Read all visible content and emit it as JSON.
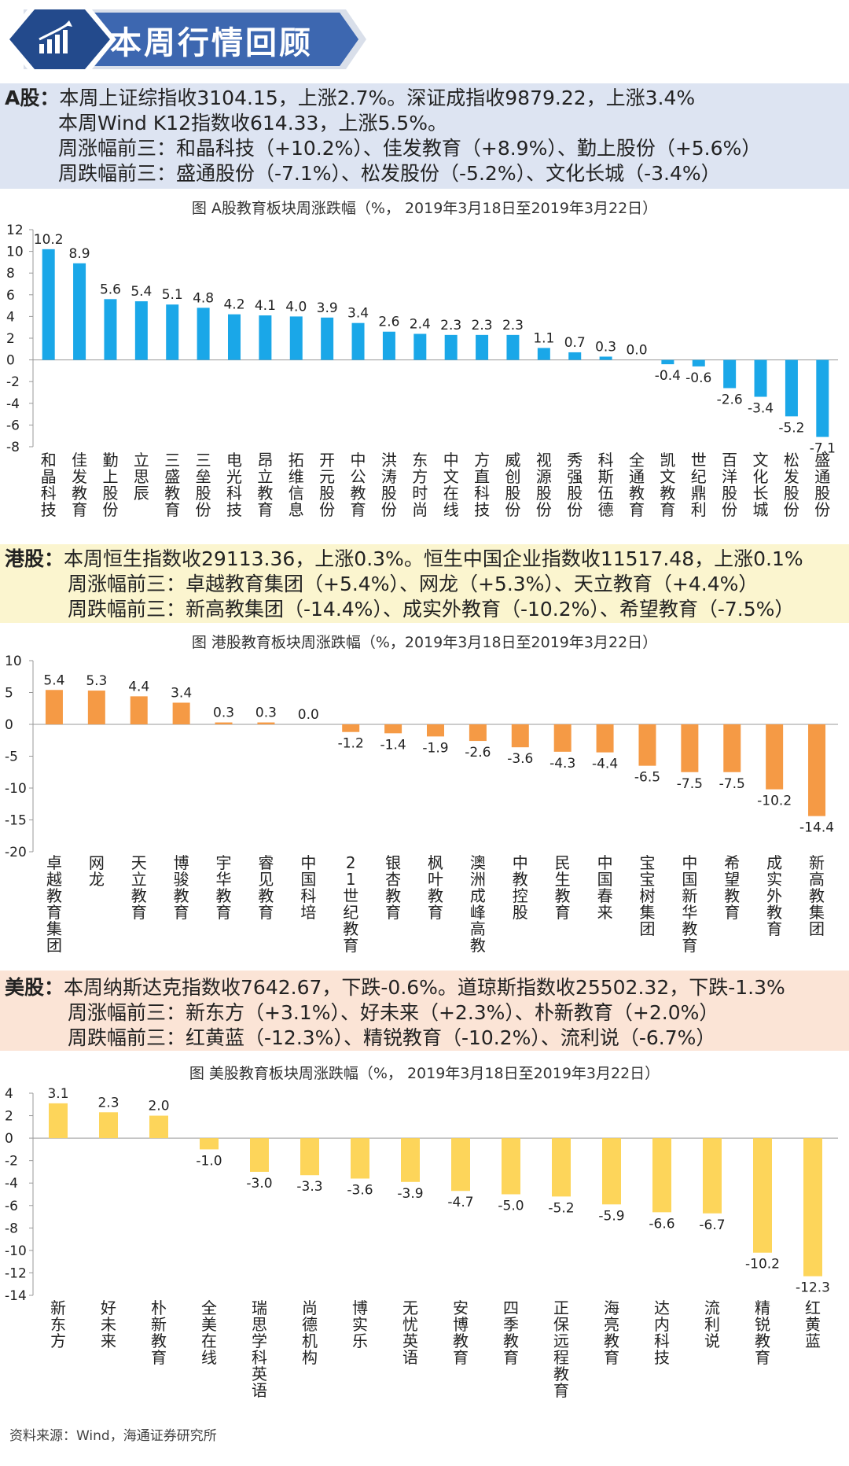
{
  "header": {
    "title": "本周行情回顾",
    "icon": "bar-chart-icon"
  },
  "a_share": {
    "tag": "A股：",
    "line1": "本周上证综指收3104.15，上涨2.7%。深证成指收9879.22，上涨3.4%",
    "line2": "本周Wind K12指数收614.33，上涨5.5%。",
    "line3": "周涨幅前三：和晶科技（+10.2%）、佳发教育（+8.9%）、勤上股份（+5.6%）",
    "line4": "周跌幅前三：盛通股份（-7.1%）、松发股份（-5.2%）、文化长城（-3.4%）"
  },
  "hk_share": {
    "tag": "港股：",
    "line1": "本周恒生指数收29113.36，上涨0.3%。恒生中国企业指数收11517.48，上涨0.1%",
    "line2": "周涨幅前三：卓越教育集团（+5.4%）、网龙（+5.3%）、天立教育（+4.4%）",
    "line3": "周跌幅前三：新高教集团（-14.4%）、成实外教育（-10.2%）、希望教育（-7.5%）"
  },
  "us_share": {
    "tag": "美股：",
    "line1": "本周纳斯达克指数收7642.67，下跌-0.6%。道琼斯指数收25502.32，下跌-1.3%",
    "line2": "周涨幅前三：新东方（+3.1%）、好未来（+2.3%）、朴新教育（+2.0%）",
    "line3": "周跌幅前三：红黄蓝（-12.3%）、精锐教育（-10.2%）、流利说（-6.7%）"
  },
  "colors": {
    "a": "#1aa7e8",
    "hk": "#f59a45",
    "us": "#fdd55a",
    "banner_dark": "#234a8c",
    "banner_light": "#4f7cc4"
  },
  "source": "资料来源：Wind，海通证券研究所",
  "chart_data": [
    {
      "type": "bar",
      "title": "图  A股教育板块周涨跌幅（%，  2019年3月18日至2019年3月22日）",
      "xlabel": "",
      "ylabel": "",
      "ylim": [
        -8,
        12
      ],
      "ticks": [
        12,
        10,
        8,
        6,
        4,
        2,
        0,
        -2,
        -4,
        -6,
        -8
      ],
      "categories": [
        "和晶科技",
        "佳发教育",
        "勤上股份",
        "立思辰",
        "三盛教育",
        "三垒股份",
        "电光科技",
        "昂立教育",
        "拓维信息",
        "开元股份",
        "中公教育",
        "洪涛股份",
        "东方时尚",
        "中文在线",
        "方直科技",
        "威创股份",
        "视源股份",
        "秀强股份",
        "科斯伍德",
        "全通教育",
        "凯文教育",
        "世纪鼎利",
        "百洋股份",
        "文化长城",
        "松发股份",
        "盛通股份"
      ],
      "values": [
        10.2,
        8.9,
        5.6,
        5.4,
        5.1,
        4.8,
        4.2,
        4.1,
        4.0,
        3.9,
        3.4,
        2.6,
        2.4,
        2.3,
        2.3,
        2.3,
        1.1,
        0.7,
        0.3,
        0.0,
        -0.4,
        -0.6,
        -2.6,
        -3.4,
        -5.2,
        -7.1
      ],
      "labels": [
        "10.2",
        "8.9",
        "5.6",
        "5.4",
        "5.1",
        "4.8",
        "4.2",
        "4.1",
        "4.0",
        "3.9",
        "3.4",
        "2.6",
        "2.4",
        "2.3",
        "2.3",
        "2.3",
        "1.1",
        "0.7",
        "0.3",
        "0.0",
        "-0.4",
        "-0.6",
        "-2.6",
        "-3.4",
        "-5.2",
        "-7.1"
      ]
    },
    {
      "type": "bar",
      "title": "图  港股教育板块周涨跌幅（%，2019年3月18日至2019年3月22日）",
      "xlabel": "",
      "ylabel": "",
      "ylim": [
        -20,
        10
      ],
      "ticks": [
        10,
        5,
        0,
        -5,
        -10,
        -15,
        -20
      ],
      "categories": [
        "卓越教育集团",
        "网龙",
        "天立教育",
        "博骏教育",
        "宇华教育",
        "睿见教育",
        "中国科培",
        "21世纪教育",
        "银杏教育",
        "枫叶教育",
        "澳洲成峰高教",
        "中教控股",
        "民生教育",
        "中国春来",
        "宝宝树集团",
        "中国新华教育",
        "希望教育",
        "成实外教育",
        "新高教集团"
      ],
      "values": [
        5.4,
        5.3,
        4.4,
        3.4,
        0.3,
        0.3,
        0.0,
        -1.2,
        -1.4,
        -1.9,
        -2.6,
        -3.6,
        -4.3,
        -4.4,
        -6.5,
        -7.5,
        -7.5,
        -10.2,
        -14.4
      ],
      "labels": [
        "5.4",
        "5.3",
        "4.4",
        "3.4",
        "0.3",
        "0.3",
        "0.0",
        "-1.2",
        "-1.4",
        "-1.9",
        "-2.6",
        "-3.6",
        "-4.3",
        "-4.4",
        "-6.5",
        "-7.5",
        "-7.5",
        "-10.2",
        "-14.4"
      ]
    },
    {
      "type": "bar",
      "title": "图  美股教育板块周涨跌幅（%，  2019年3月18日至2019年3月22日）",
      "xlabel": "",
      "ylabel": "",
      "ylim": [
        -14,
        4
      ],
      "ticks": [
        4,
        2,
        0,
        -2,
        -4,
        -6,
        -8,
        -10,
        -12,
        -14
      ],
      "categories": [
        "新东方",
        "好未来",
        "朴新教育",
        "全美在线",
        "瑞思学科英语",
        "尚德机构",
        "博实乐",
        "无忧英语",
        "安博教育",
        "四季教育",
        "正保远程教育",
        "海亮教育",
        "达内科技",
        "流利说",
        "精锐教育",
        "红黄蓝"
      ],
      "values": [
        3.1,
        2.3,
        2.0,
        -1.0,
        -3.0,
        -3.3,
        -3.6,
        -3.9,
        -4.7,
        -5.0,
        -5.2,
        -5.9,
        -6.6,
        -6.7,
        -10.2,
        -12.3
      ],
      "labels": [
        "3.1",
        "2.3",
        "2.0",
        "-1.0",
        "-3.0",
        "-3.3",
        "-3.6",
        "-3.9",
        "-4.7",
        "-5.0",
        "-5.2",
        "-5.9",
        "-6.6",
        "-6.7",
        "-10.2",
        "-12.3"
      ]
    }
  ]
}
